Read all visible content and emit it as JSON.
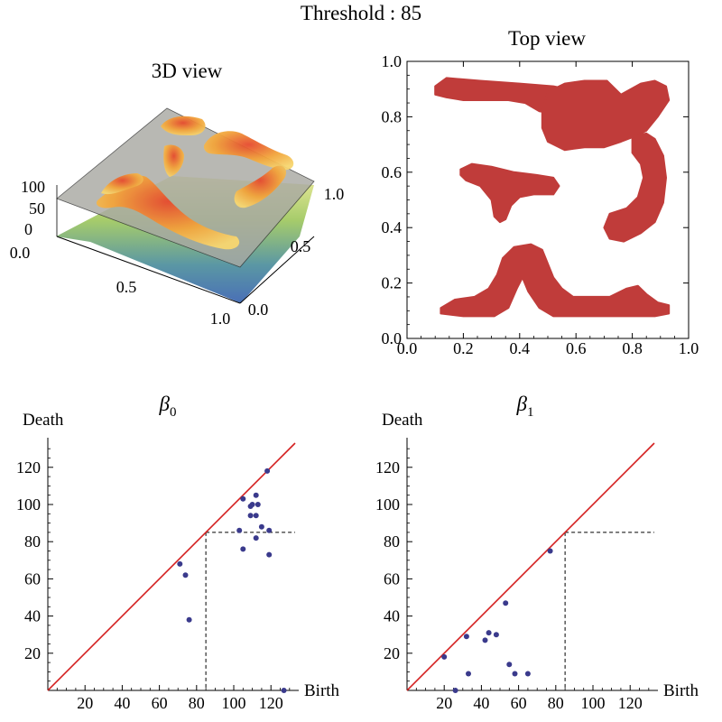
{
  "title": "Threshold : 85",
  "threshold": 85,
  "colors": {
    "region": "#c03c3a",
    "diagonal": "#d41f1f",
    "point": "#3a3a8c",
    "plane": "#a8a8a8"
  },
  "chart_data": [
    {
      "id": "view3d",
      "type": "surface3d",
      "title": "3D view",
      "z_ticks": [
        "100",
        "50",
        "0"
      ],
      "x_ticks": [
        "0.0",
        "0.5",
        "1.0"
      ],
      "y_ticks": [
        "0.0",
        "0.5",
        "1.0"
      ]
    },
    {
      "id": "topview",
      "type": "region",
      "title": "Top view",
      "xlim": [
        0,
        1
      ],
      "ylim": [
        0,
        1
      ],
      "x_ticks": [
        "0.0",
        "0.2",
        "0.4",
        "0.6",
        "0.8",
        "1.0"
      ],
      "y_ticks": [
        "0.0",
        "0.2",
        "0.4",
        "0.6",
        "0.8",
        "1.0"
      ],
      "regions": [
        {
          "name": "top-left-blob",
          "points": [
            [
              0.1,
              0.91
            ],
            [
              0.14,
              0.94
            ],
            [
              0.26,
              0.93
            ],
            [
              0.4,
              0.92
            ],
            [
              0.52,
              0.91
            ],
            [
              0.57,
              0.9
            ],
            [
              0.56,
              0.84
            ],
            [
              0.53,
              0.81
            ],
            [
              0.47,
              0.82
            ],
            [
              0.42,
              0.85
            ],
            [
              0.36,
              0.86
            ],
            [
              0.28,
              0.86
            ],
            [
              0.2,
              0.86
            ],
            [
              0.14,
              0.87
            ],
            [
              0.1,
              0.88
            ]
          ]
        },
        {
          "name": "top-right-blob",
          "points": [
            [
              0.48,
              0.82
            ],
            [
              0.5,
              0.89
            ],
            [
              0.56,
              0.92
            ],
            [
              0.63,
              0.93
            ],
            [
              0.71,
              0.93
            ],
            [
              0.76,
              0.88
            ],
            [
              0.83,
              0.92
            ],
            [
              0.88,
              0.93
            ],
            [
              0.92,
              0.91
            ],
            [
              0.93,
              0.86
            ],
            [
              0.89,
              0.8
            ],
            [
              0.85,
              0.75
            ],
            [
              0.81,
              0.73
            ],
            [
              0.76,
              0.71
            ],
            [
              0.7,
              0.69
            ],
            [
              0.63,
              0.69
            ],
            [
              0.56,
              0.68
            ],
            [
              0.5,
              0.71
            ],
            [
              0.48,
              0.76
            ]
          ]
        },
        {
          "name": "middle-left-blob",
          "points": [
            [
              0.19,
              0.61
            ],
            [
              0.23,
              0.63
            ],
            [
              0.3,
              0.62
            ],
            [
              0.38,
              0.6
            ],
            [
              0.46,
              0.59
            ],
            [
              0.52,
              0.58
            ],
            [
              0.54,
              0.55
            ],
            [
              0.52,
              0.52
            ],
            [
              0.45,
              0.52
            ],
            [
              0.4,
              0.51
            ],
            [
              0.37,
              0.48
            ],
            [
              0.35,
              0.43
            ],
            [
              0.33,
              0.42
            ],
            [
              0.31,
              0.44
            ],
            [
              0.3,
              0.5
            ],
            [
              0.26,
              0.55
            ],
            [
              0.21,
              0.57
            ],
            [
              0.19,
              0.59
            ]
          ]
        },
        {
          "name": "right-arc-blob",
          "points": [
            [
              0.8,
              0.73
            ],
            [
              0.85,
              0.74
            ],
            [
              0.88,
              0.72
            ],
            [
              0.91,
              0.66
            ],
            [
              0.92,
              0.58
            ],
            [
              0.91,
              0.49
            ],
            [
              0.88,
              0.42
            ],
            [
              0.83,
              0.38
            ],
            [
              0.77,
              0.35
            ],
            [
              0.72,
              0.36
            ],
            [
              0.7,
              0.4
            ],
            [
              0.72,
              0.45
            ],
            [
              0.78,
              0.47
            ],
            [
              0.82,
              0.51
            ],
            [
              0.84,
              0.58
            ],
            [
              0.83,
              0.63
            ],
            [
              0.8,
              0.67
            ]
          ]
        },
        {
          "name": "bottom-blob",
          "points": [
            [
              0.12,
              0.09
            ],
            [
              0.12,
              0.11
            ],
            [
              0.17,
              0.14
            ],
            [
              0.24,
              0.15
            ],
            [
              0.29,
              0.18
            ],
            [
              0.32,
              0.23
            ],
            [
              0.34,
              0.29
            ],
            [
              0.38,
              0.33
            ],
            [
              0.44,
              0.34
            ],
            [
              0.48,
              0.32
            ],
            [
              0.5,
              0.27
            ],
            [
              0.52,
              0.22
            ],
            [
              0.55,
              0.18
            ],
            [
              0.59,
              0.15
            ],
            [
              0.65,
              0.15
            ],
            [
              0.72,
              0.15
            ],
            [
              0.78,
              0.18
            ],
            [
              0.82,
              0.19
            ],
            [
              0.85,
              0.16
            ],
            [
              0.89,
              0.13
            ],
            [
              0.93,
              0.12
            ],
            [
              0.93,
              0.09
            ],
            [
              0.88,
              0.08
            ],
            [
              0.8,
              0.08
            ],
            [
              0.7,
              0.08
            ],
            [
              0.6,
              0.08
            ],
            [
              0.52,
              0.08
            ],
            [
              0.47,
              0.11
            ],
            [
              0.43,
              0.17
            ],
            [
              0.41,
              0.22
            ],
            [
              0.39,
              0.18
            ],
            [
              0.36,
              0.11
            ],
            [
              0.31,
              0.08
            ],
            [
              0.2,
              0.08
            ]
          ]
        }
      ]
    },
    {
      "id": "beta0",
      "type": "scatter",
      "title": "β",
      "title_sub": "0",
      "xlabel": "Birth",
      "ylabel": "Death",
      "xlim": [
        0,
        133
      ],
      "ylim": [
        0,
        133
      ],
      "x_ticks": [
        20,
        40,
        60,
        80,
        100,
        120
      ],
      "y_ticks": [
        20,
        40,
        60,
        80,
        100,
        120
      ],
      "points": [
        [
          71,
          68
        ],
        [
          74,
          62
        ],
        [
          76,
          38
        ],
        [
          103,
          86
        ],
        [
          105,
          103
        ],
        [
          105,
          76
        ],
        [
          109,
          99
        ],
        [
          109,
          94
        ],
        [
          110,
          100
        ],
        [
          112,
          105
        ],
        [
          112,
          94
        ],
        [
          113,
          100
        ],
        [
          112,
          82
        ],
        [
          115,
          88
        ],
        [
          118,
          118
        ],
        [
          119,
          86
        ],
        [
          119,
          73
        ],
        [
          127,
          0
        ]
      ]
    },
    {
      "id": "beta1",
      "type": "scatter",
      "title": "β",
      "title_sub": "1",
      "xlabel": "Birth",
      "ylabel": "Death",
      "xlim": [
        0,
        133
      ],
      "ylim": [
        0,
        133
      ],
      "x_ticks": [
        20,
        40,
        60,
        80,
        100,
        120
      ],
      "y_ticks": [
        20,
        40,
        60,
        80,
        100,
        120
      ],
      "points": [
        [
          20,
          18
        ],
        [
          26,
          0
        ],
        [
          32,
          29
        ],
        [
          33,
          9
        ],
        [
          42,
          27
        ],
        [
          44,
          31
        ],
        [
          48,
          30
        ],
        [
          53,
          47
        ],
        [
          55,
          14
        ],
        [
          58,
          9
        ],
        [
          65,
          9
        ],
        [
          77,
          75
        ]
      ]
    }
  ]
}
